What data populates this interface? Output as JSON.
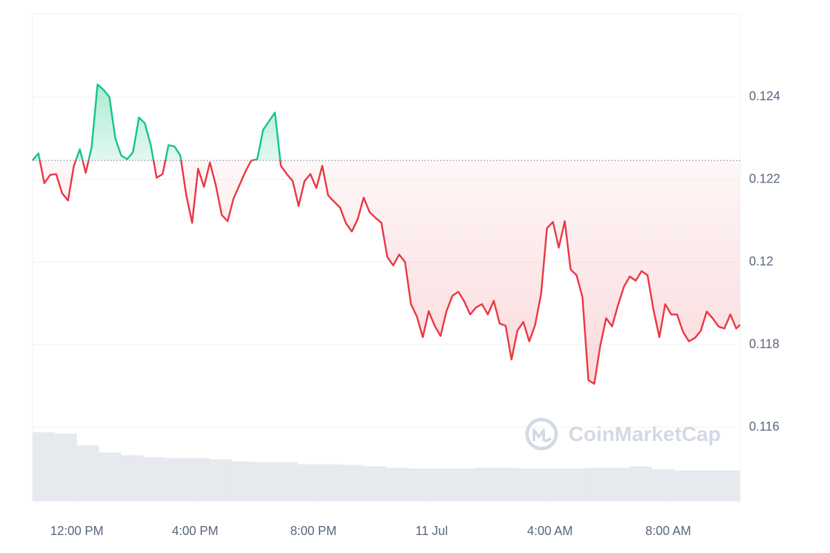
{
  "chart_data": {
    "type": "line",
    "x": [
      10.5,
      10.7,
      10.9,
      11.1,
      11.3,
      11.5,
      11.7,
      11.9,
      12.1,
      12.3,
      12.5,
      12.7,
      12.9,
      13.1,
      13.3,
      13.5,
      13.7,
      13.9,
      14.1,
      14.3,
      14.5,
      14.7,
      14.9,
      15.1,
      15.3,
      15.5,
      15.7,
      15.9,
      16.1,
      16.3,
      16.5,
      16.7,
      16.9,
      17.1,
      17.3,
      17.5,
      17.7,
      17.9,
      18.1,
      18.3,
      18.5,
      18.7,
      18.9,
      19.1,
      19.3,
      19.5,
      19.7,
      19.9,
      20.1,
      20.3,
      20.5,
      20.7,
      20.9,
      21.1,
      21.3,
      21.5,
      21.7,
      21.9,
      22.1,
      22.3,
      22.5,
      22.7,
      22.9,
      23.1,
      23.3,
      23.5,
      23.7,
      23.9,
      24.1,
      24.3,
      24.5,
      24.7,
      24.9,
      25.1,
      25.3,
      25.5,
      25.7,
      25.9,
      26.1,
      26.3,
      26.5,
      26.7,
      26.9,
      27.1,
      27.3,
      27.5,
      27.7,
      27.9,
      28.1,
      28.3,
      28.5,
      28.7,
      28.9,
      29.1,
      29.3,
      29.5,
      29.7,
      29.9,
      30.1,
      30.3,
      30.5,
      30.7,
      30.9,
      31.1,
      31.3,
      31.5,
      31.7,
      31.9,
      32.1,
      32.3,
      32.5,
      32.7,
      32.9,
      33.1,
      33.3,
      33.5,
      33.7,
      33.9,
      34.1,
      34.3,
      34.43
    ],
    "series": [
      {
        "color": "#ea3943",
        "color_up": "#16c784",
        "values": [
          0.12246,
          0.12263,
          0.12191,
          0.12211,
          0.12213,
          0.12167,
          0.12149,
          0.12233,
          0.12273,
          0.12216,
          0.12278,
          0.1243,
          0.12417,
          0.124,
          0.123,
          0.12258,
          0.12249,
          0.12266,
          0.1235,
          0.12336,
          0.12283,
          0.12204,
          0.12213,
          0.12283,
          0.1228,
          0.12258,
          0.12162,
          0.12095,
          0.12226,
          0.12182,
          0.12241,
          0.12186,
          0.12114,
          0.12099,
          0.12154,
          0.12186,
          0.12219,
          0.12246,
          0.12249,
          0.1232,
          0.12341,
          0.12362,
          0.12233,
          0.12213,
          0.12196,
          0.12136,
          0.12196,
          0.12213,
          0.12179,
          0.12233,
          0.12161,
          0.12146,
          0.12132,
          0.12094,
          0.12074,
          0.12104,
          0.12156,
          0.12121,
          0.12107,
          0.12095,
          0.12012,
          0.11992,
          0.12018,
          0.12,
          0.11898,
          0.11868,
          0.11818,
          0.11881,
          0.11846,
          0.11821,
          0.11881,
          0.11918,
          0.11928,
          0.11905,
          0.11873,
          0.1189,
          0.11898,
          0.11873,
          0.11906,
          0.11851,
          0.11846,
          0.11764,
          0.11834,
          0.11855,
          0.11808,
          0.11848,
          0.11923,
          0.12082,
          0.12097,
          0.12035,
          0.12099,
          0.11982,
          0.11968,
          0.11915,
          0.11714,
          0.11705,
          0.11797,
          0.11864,
          0.11844,
          0.11895,
          0.1194,
          0.11965,
          0.11955,
          0.11978,
          0.11968,
          0.11885,
          0.11818,
          0.11898,
          0.11873,
          0.11873,
          0.11831,
          0.11808,
          0.11816,
          0.11833,
          0.1188,
          0.11864,
          0.11844,
          0.11839,
          0.11873,
          0.11839,
          0.11848
        ]
      }
    ],
    "baseline": 0.12246,
    "xlim": [
      10.5,
      34.43
    ],
    "xticks": [
      {
        "value": 12,
        "label": "12:00 PM"
      },
      {
        "value": 16,
        "label": "4:00 PM"
      },
      {
        "value": 20,
        "label": "8:00 PM"
      },
      {
        "value": 24,
        "label": "11 Jul"
      },
      {
        "value": 28,
        "label": "4:00 AM"
      },
      {
        "value": 32,
        "label": "8:00 AM"
      }
    ],
    "ylim": [
      0.11421,
      0.12601
    ],
    "yticks": [
      0.116,
      0.118,
      0.12,
      0.122,
      0.124
    ],
    "grid": true,
    "volume": {
      "color": "#e6e9ee",
      "values": [
        99,
        97,
        80,
        70,
        66,
        63,
        62,
        62,
        60,
        57,
        56,
        56,
        53,
        53,
        52,
        50,
        48,
        47,
        47,
        47,
        48,
        48,
        47,
        47,
        47,
        48,
        48,
        50,
        46,
        44,
        44,
        44
      ]
    },
    "y2lim": [
      0,
      700
    ],
    "watermark": "CoinMarketCap"
  }
}
